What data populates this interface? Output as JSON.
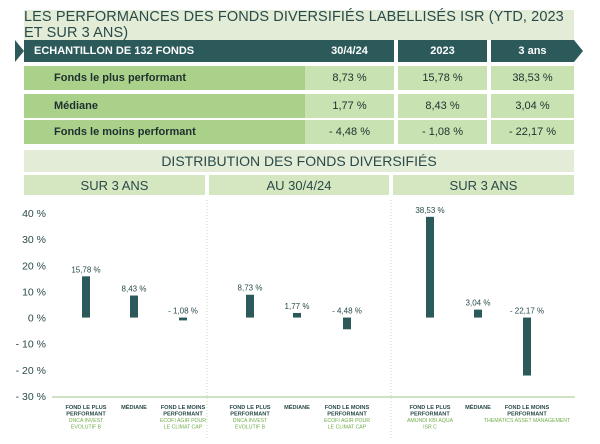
{
  "title": "LES PERFORMANCES DES FONDS DIVERSIFIÉS LABELLISÉS ISR (YTD, 2023 ET SUR 3 ANS)",
  "table": {
    "headers": [
      "ECHANTILLON DE 132 FONDS",
      "30/4/24",
      "2023",
      "3 ans"
    ],
    "rows": [
      {
        "label": "Fonds le plus performant",
        "values": [
          "8,73 %",
          "15,78 %",
          "38,53 %"
        ]
      },
      {
        "label": "Médiane",
        "values": [
          "1,77 %",
          "8,43 %",
          "3,04 %"
        ]
      },
      {
        "label": "Fonds le moins performant",
        "values": [
          "- 4,48 %",
          "- 1,08 %",
          "- 22,17 %"
        ]
      }
    ]
  },
  "distribution_title": "DISTRIBUTION DES FONDS DIVERSIFIÉS",
  "panels": [
    "SUR 3 ANS",
    "AU 30/4/24",
    "SUR 3 ANS"
  ],
  "colors": {
    "header": "#2c5a5a",
    "row_label": "#a9d18a",
    "row_value": "#c8e2b2",
    "banner": "#e2ecd6",
    "bar": "#2c5a5a",
    "sublabel": "#6fae4a"
  },
  "chart_data": {
    "type": "bar",
    "ylim": [
      -30,
      40
    ],
    "yticks": [
      40,
      30,
      20,
      10,
      0,
      -10,
      -20,
      -30
    ],
    "ytick_labels": [
      "40 %",
      "30 %",
      "20 %",
      "10 %",
      "0 %",
      "- 10 %",
      "- 20 %",
      "- 30 %"
    ],
    "groups": [
      {
        "bars": [
          {
            "value": 15.78,
            "label": "15,78 %",
            "name": "FOND LE PLUS PERFORMANT",
            "sublabel": "DNCA INVEST EVOLUTIF B"
          },
          {
            "value": 8.43,
            "label": "8,43 %",
            "name": "MÉDIANE",
            "sublabel": ""
          },
          {
            "value": -1.08,
            "label": "- 1,08 %",
            "name": "FOND LE MOINS PERFORMANT",
            "sublabel": "ECOFI AGIR POUR LE CLIMAT CAP"
          }
        ]
      },
      {
        "bars": [
          {
            "value": 8.73,
            "label": "8,73 %",
            "name": "FOND LE PLUS PERFORMANT",
            "sublabel": "DNCA INVEST EVOLUTIF B"
          },
          {
            "value": 1.77,
            "label": "1,77 %",
            "name": "MÉDIANE",
            "sublabel": ""
          },
          {
            "value": -4.48,
            "label": "- 4,48 %",
            "name": "FOND LE MOINS PERFORMANT",
            "sublabel": "ECOFI AGIR POUR LE CLIMAT CAP"
          }
        ]
      },
      {
        "bars": [
          {
            "value": 38.53,
            "label": "38,53 %",
            "name": "FOND LE PLUS PERFORMANT",
            "sublabel": "AMUNDI KBI AQUA ISR C"
          },
          {
            "value": 3.04,
            "label": "3,04 %",
            "name": "MÉDIANE",
            "sublabel": ""
          },
          {
            "value": -22.17,
            "label": "- 22,17 %",
            "name": "FOND LE MOINS PERFORMANT",
            "sublabel": "THEMATICS ASSET MANAGEMENT"
          }
        ]
      }
    ]
  }
}
